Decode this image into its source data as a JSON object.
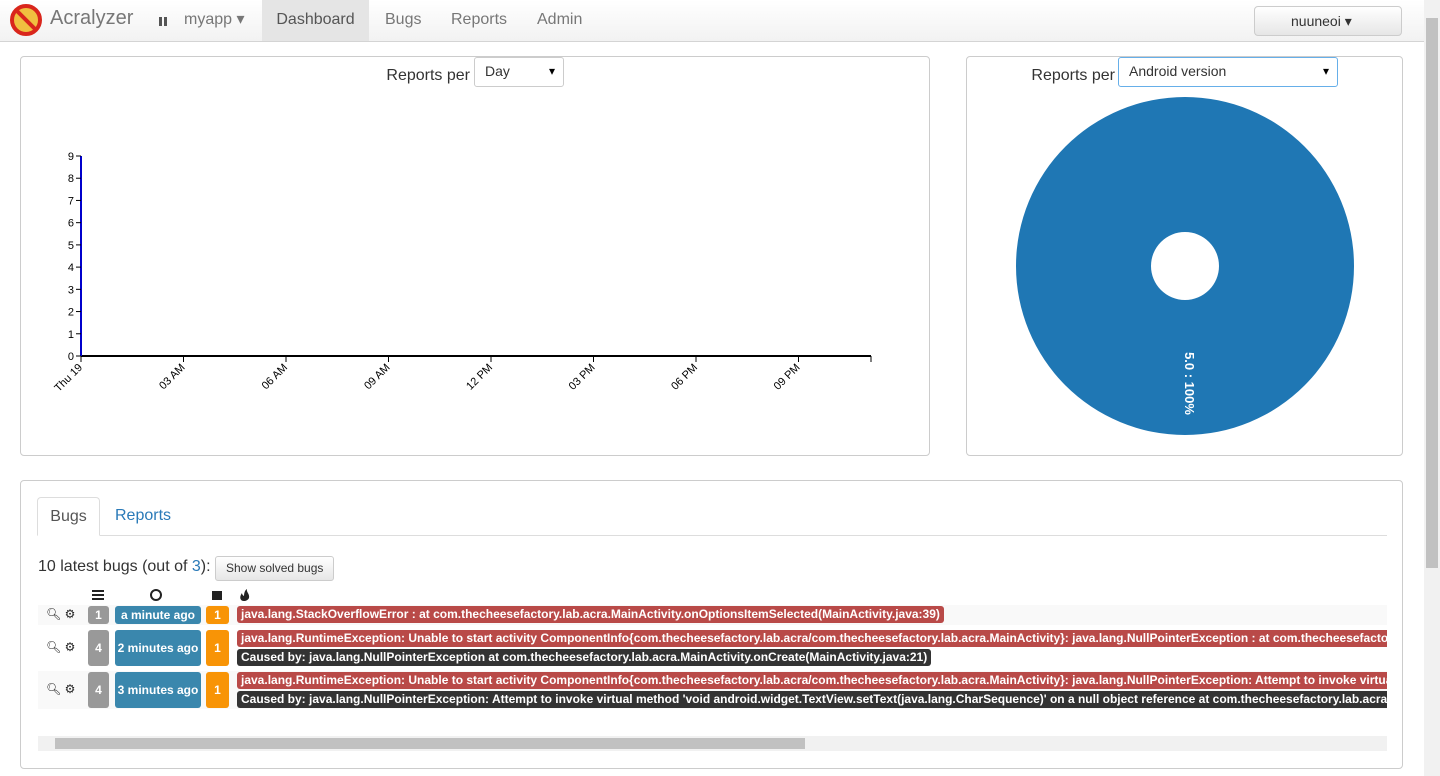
{
  "navbar": {
    "brand": "Acralyzer",
    "app": "myapp",
    "items": [
      "Dashboard",
      "Bugs",
      "Reports",
      "Admin"
    ],
    "user": "nuuneoi"
  },
  "time_chart": {
    "type": "line",
    "label": "Reports per",
    "select": "Day",
    "ylim": [
      0,
      9
    ],
    "yticks": [
      0,
      1,
      2,
      3,
      4,
      5,
      6,
      7,
      8,
      9
    ],
    "xticks": [
      "Thu 19",
      "03 AM",
      "06 AM",
      "09 AM",
      "12 PM",
      "03 PM",
      "06 PM",
      "09 PM"
    ],
    "color": "#0000cc"
  },
  "pie_chart": {
    "type": "pie",
    "label": "Reports per",
    "select": "Android version",
    "color": "#1f77b4",
    "slices": [
      {
        "name": "5.0",
        "value": 100,
        "label": "5.0 : 100%"
      }
    ]
  },
  "bugs_panel": {
    "tabs": [
      "Bugs",
      "Reports"
    ],
    "summary": {
      "prefix": "10 latest bugs (out of ",
      "total": 3,
      "suffix": "):"
    },
    "button": "Show solved bugs",
    "rows": [
      {
        "count": 1,
        "time": "a minute ago",
        "version": 1,
        "error": "java.lang.StackOverflowError : at com.thecheesefactory.lab.acra.MainActivity.onOptionsItemSelected(MainActivity.java:39)"
      },
      {
        "count": 4,
        "time": "2 minutes ago",
        "version": 1,
        "error": "java.lang.RuntimeException: Unable to start activity ComponentInfo{com.thecheesefactory.lab.acra/com.thecheesefactory.lab.acra.MainActivity}: java.lang.NullPointerException : at com.thecheesefactory.",
        "cause": "Caused by: java.lang.NullPointerException at com.thecheesefactory.lab.acra.MainActivity.onCreate(MainActivity.java:21)"
      },
      {
        "count": 4,
        "time": "3 minutes ago",
        "version": 1,
        "error": "java.lang.RuntimeException: Unable to start activity ComponentInfo{com.thecheesefactory.lab.acra/com.thecheesefactory.lab.acra.MainActivity}: java.lang.NullPointerException: Attempt to invoke virtual m",
        "cause": "Caused by: java.lang.NullPointerException: Attempt to invoke virtual method 'void android.widget.TextView.setText(java.lang.CharSequence)' on a null object reference at com.thecheesefactory.lab.acra.M"
      }
    ]
  }
}
